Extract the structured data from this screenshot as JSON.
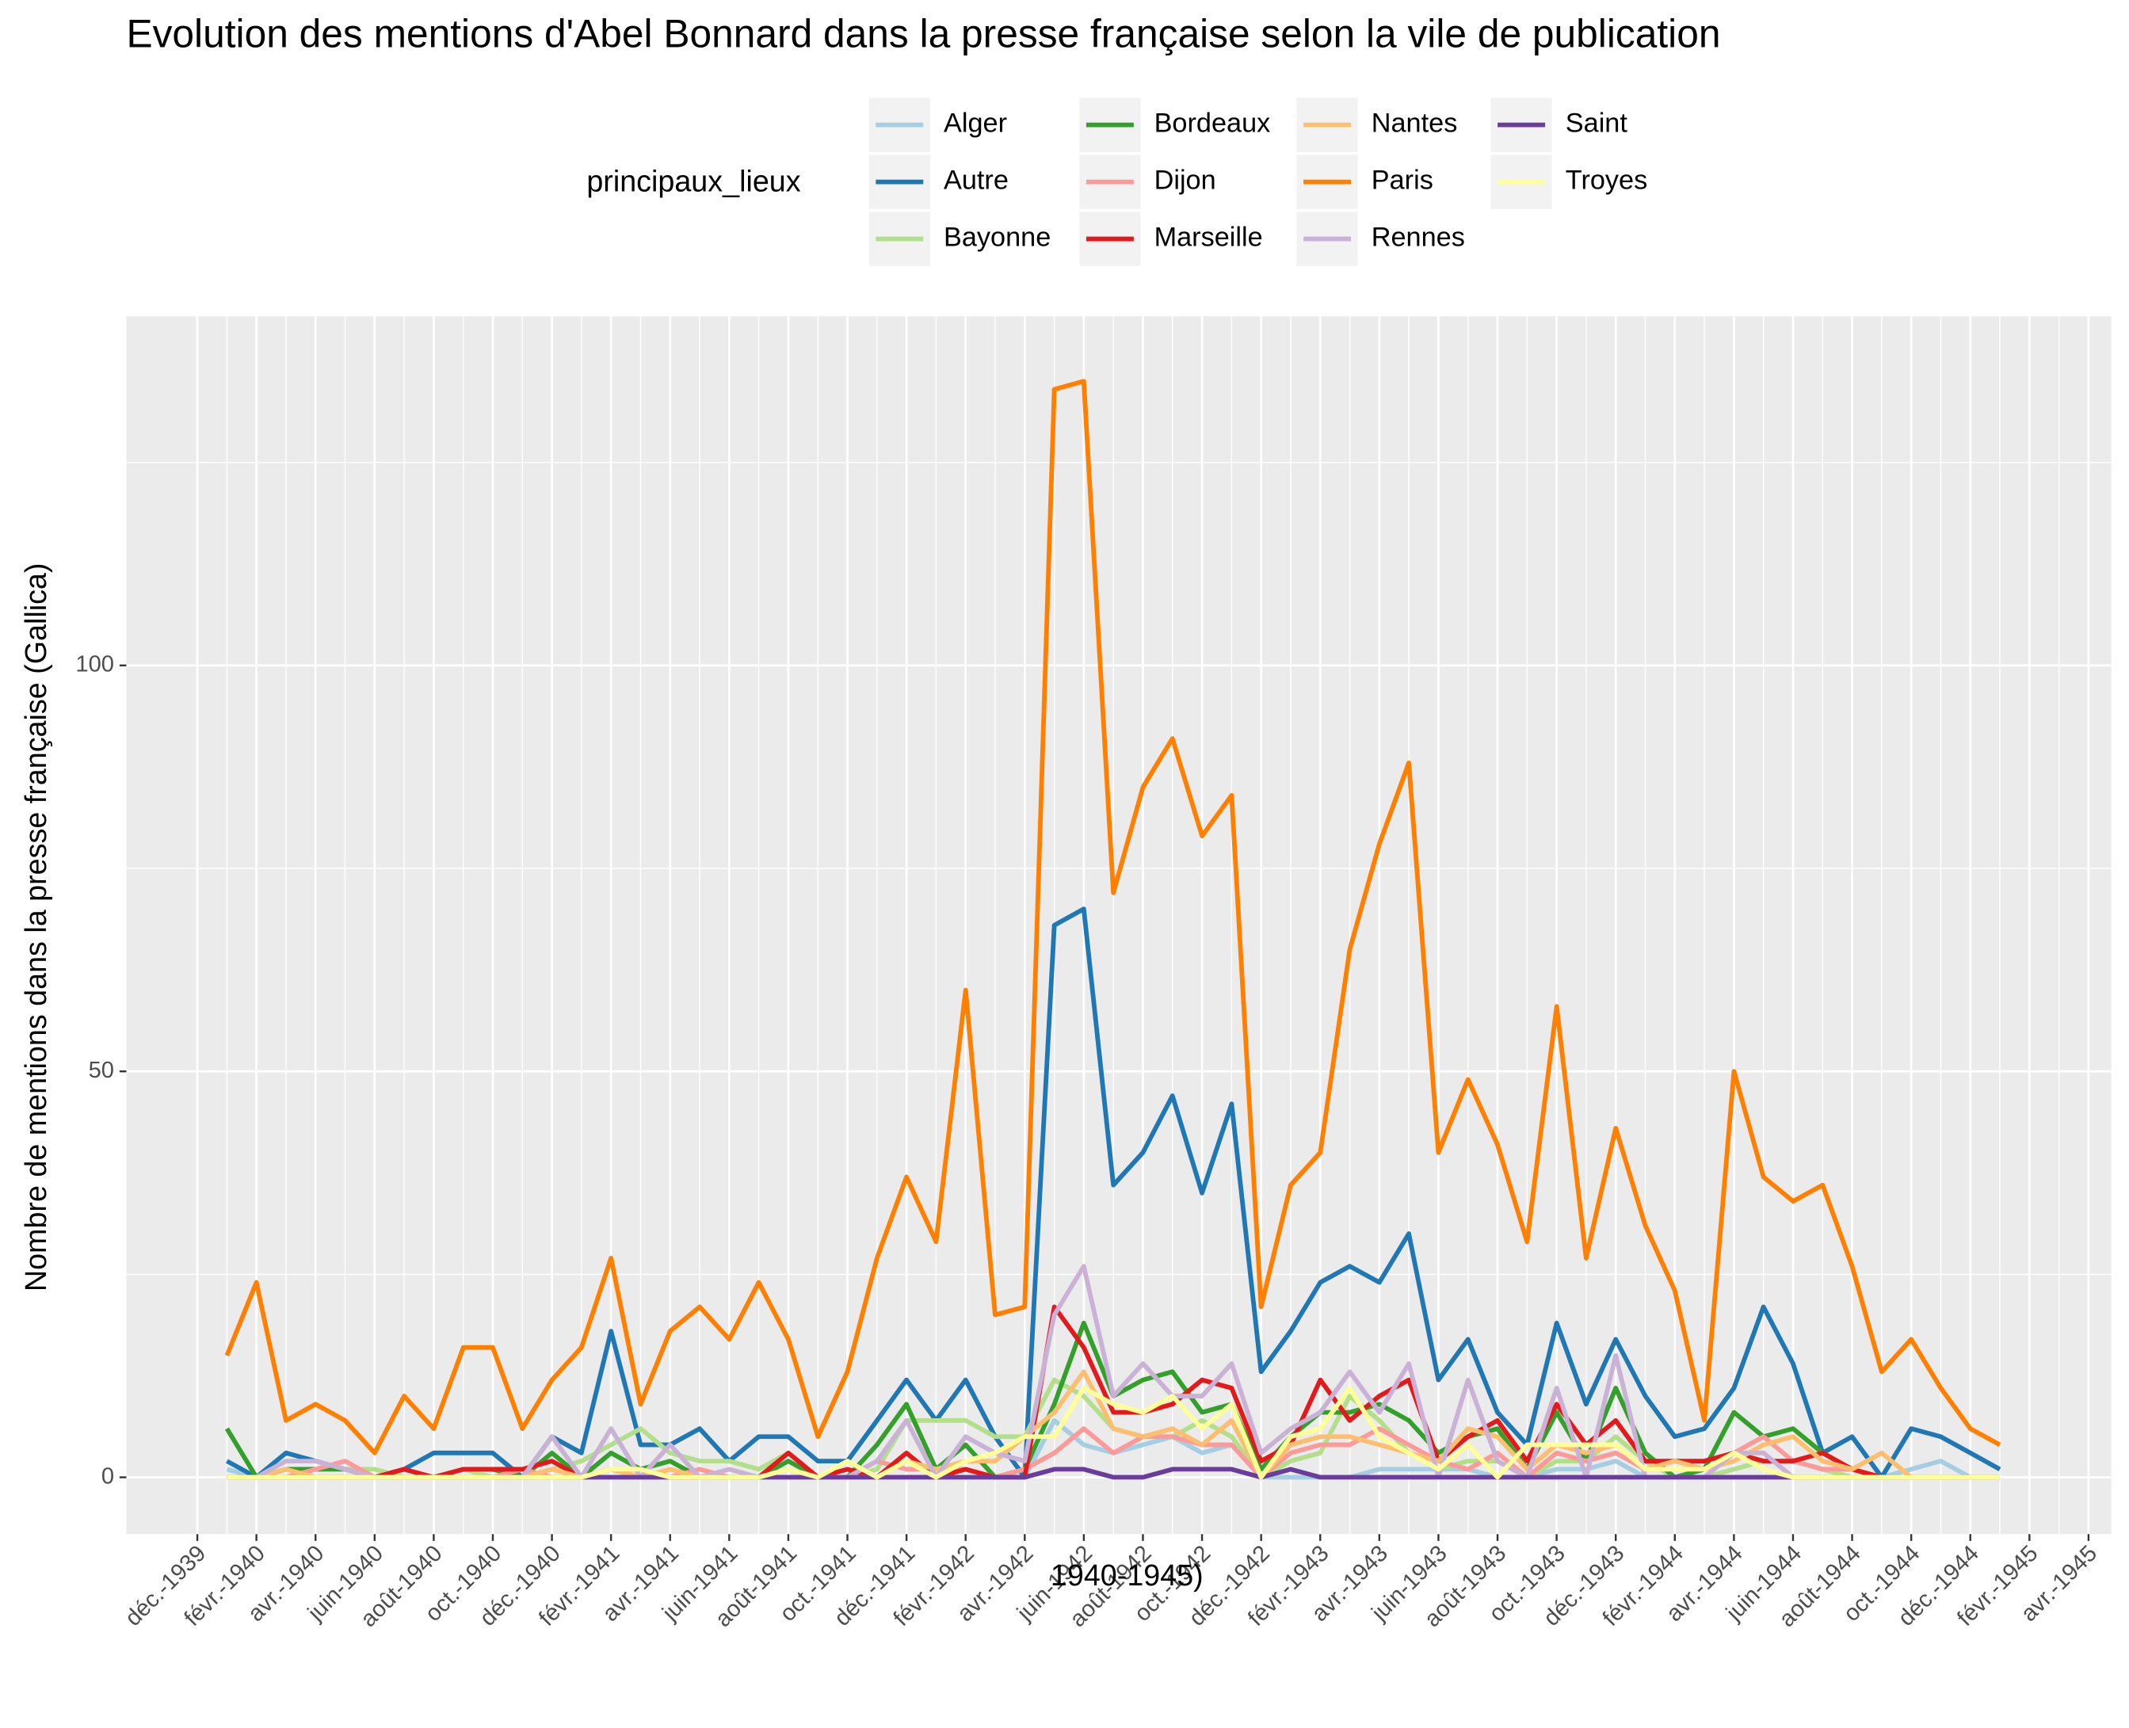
{
  "chart_data": {
    "type": "line",
    "title": "Evolution des mentions d'Abel Bonnard dans la presse française selon la vile de publication",
    "x_label": "1940-1945)",
    "y_label": "Nombre de mentions dans la presse française (Gallica)",
    "legend_title": "principaux_lieux",
    "legend_position": "top",
    "grid": true,
    "x": [
      "1940-01",
      "1940-02",
      "1940-03",
      "1940-04",
      "1940-05",
      "1940-06",
      "1940-07",
      "1940-08",
      "1940-09",
      "1940-10",
      "1940-11",
      "1940-12",
      "1941-01",
      "1941-02",
      "1941-03",
      "1941-04",
      "1941-05",
      "1941-06",
      "1941-07",
      "1941-08",
      "1941-09",
      "1941-10",
      "1941-11",
      "1941-12",
      "1942-01",
      "1942-02",
      "1942-03",
      "1942-04",
      "1942-05",
      "1942-06",
      "1942-07",
      "1942-08",
      "1942-09",
      "1942-10",
      "1942-11",
      "1942-12",
      "1943-01",
      "1943-02",
      "1943-03",
      "1943-04",
      "1943-05",
      "1943-06",
      "1943-07",
      "1943-08",
      "1943-09",
      "1943-10",
      "1943-11",
      "1943-12",
      "1944-01",
      "1944-02",
      "1944-03",
      "1944-04",
      "1944-05",
      "1944-06",
      "1944-07",
      "1944-08",
      "1944-09",
      "1944-10",
      "1944-11",
      "1944-12",
      "1945-01"
    ],
    "xlim": [
      "1939-09",
      "1945-05"
    ],
    "xticks": [
      {
        "value": "1939-12",
        "label": "déc.-1939"
      },
      {
        "value": "1940-02",
        "label": "févr.-1940"
      },
      {
        "value": "1940-04",
        "label": "avr.-1940"
      },
      {
        "value": "1940-06",
        "label": "juin-1940"
      },
      {
        "value": "1940-08",
        "label": "août-1940"
      },
      {
        "value": "1940-10",
        "label": "oct.-1940"
      },
      {
        "value": "1940-12",
        "label": "déc.-1940"
      },
      {
        "value": "1941-02",
        "label": "févr.-1941"
      },
      {
        "value": "1941-04",
        "label": "avr.-1941"
      },
      {
        "value": "1941-06",
        "label": "juin-1941"
      },
      {
        "value": "1941-08",
        "label": "août-1941"
      },
      {
        "value": "1941-10",
        "label": "oct.-1941"
      },
      {
        "value": "1941-12",
        "label": "déc.-1941"
      },
      {
        "value": "1942-02",
        "label": "févr.-1942"
      },
      {
        "value": "1942-04",
        "label": "avr.-1942"
      },
      {
        "value": "1942-06",
        "label": "juin-1942"
      },
      {
        "value": "1942-08",
        "label": "août-1942"
      },
      {
        "value": "1942-10",
        "label": "oct.-1942"
      },
      {
        "value": "1942-12",
        "label": "déc.-1942"
      },
      {
        "value": "1943-02",
        "label": "févr.-1943"
      },
      {
        "value": "1943-04",
        "label": "avr.-1943"
      },
      {
        "value": "1943-06",
        "label": "juin-1943"
      },
      {
        "value": "1943-08",
        "label": "août-1943"
      },
      {
        "value": "1943-10",
        "label": "oct.-1943"
      },
      {
        "value": "1943-12",
        "label": "déc.-1943"
      },
      {
        "value": "1944-02",
        "label": "févr.-1944"
      },
      {
        "value": "1944-04",
        "label": "avr.-1944"
      },
      {
        "value": "1944-06",
        "label": "juin-1944"
      },
      {
        "value": "1944-08",
        "label": "août-1944"
      },
      {
        "value": "1944-10",
        "label": "oct.-1944"
      },
      {
        "value": "1944-12",
        "label": "déc.-1944"
      },
      {
        "value": "1945-02",
        "label": "févr.-1945"
      },
      {
        "value": "1945-04",
        "label": "avr.-1945"
      }
    ],
    "ylim": [
      -7,
      143
    ],
    "yticks": [
      0,
      50,
      100
    ],
    "y_minor_grid": [
      25,
      75,
      125
    ],
    "series": [
      {
        "name": "Alger",
        "color": "#a6cee3",
        "values": [
          1,
          0,
          0,
          0,
          0,
          0,
          0,
          0,
          0,
          0,
          0,
          0,
          0,
          0,
          0,
          0,
          0,
          0,
          0,
          0,
          0,
          0,
          0,
          0,
          0,
          0,
          0,
          0,
          7,
          4,
          3,
          4,
          5,
          3,
          4,
          0,
          0,
          0,
          0,
          1,
          1,
          1,
          1,
          0,
          0,
          1,
          1,
          2,
          0,
          0,
          0,
          0,
          0,
          0,
          0,
          0,
          0,
          1,
          2,
          0,
          0
        ]
      },
      {
        "name": "Autre",
        "color": "#1f78b4",
        "values": [
          2,
          0,
          3,
          2,
          1,
          0,
          1,
          3,
          3,
          3,
          0,
          5,
          3,
          18,
          4,
          4,
          6,
          2,
          5,
          5,
          2,
          2,
          7,
          12,
          7,
          12,
          5,
          0,
          68,
          70,
          36,
          40,
          47,
          35,
          46,
          13,
          18,
          24,
          26,
          24,
          30,
          12,
          17,
          8,
          4,
          19,
          9,
          17,
          10,
          5,
          6,
          11,
          21,
          14,
          3,
          5,
          0,
          6,
          5,
          3,
          1
        ]
      },
      {
        "name": "Bayonne",
        "color": "#b2df8a",
        "values": [
          0,
          0,
          1,
          1,
          1,
          1,
          0,
          0,
          1,
          0,
          0,
          1,
          2,
          4,
          6,
          3,
          2,
          2,
          1,
          3,
          0,
          0,
          1,
          7,
          7,
          7,
          5,
          5,
          12,
          10,
          6,
          5,
          5,
          7,
          5,
          0,
          2,
          3,
          10,
          7,
          3,
          1,
          2,
          2,
          0,
          2,
          2,
          5,
          2,
          0,
          0,
          1,
          2,
          2,
          1,
          0,
          0,
          0,
          0,
          0,
          0
        ]
      },
      {
        "name": "Bordeaux",
        "color": "#33a02c",
        "values": [
          6,
          0,
          1,
          1,
          1,
          0,
          0,
          0,
          1,
          1,
          0,
          3,
          0,
          3,
          1,
          2,
          0,
          0,
          0,
          2,
          0,
          0,
          4,
          9,
          1,
          4,
          0,
          1,
          9,
          19,
          10,
          12,
          13,
          8,
          9,
          1,
          5,
          8,
          8,
          9,
          7,
          3,
          5,
          6,
          1,
          8,
          2,
          11,
          3,
          0,
          1,
          8,
          5,
          6,
          3,
          1,
          0,
          0,
          0,
          0,
          0
        ]
      },
      {
        "name": "Dijon",
        "color": "#fb9a99",
        "values": [
          0,
          0,
          0,
          1,
          2,
          0,
          0,
          0,
          0,
          0,
          1,
          0,
          0,
          1,
          0,
          0,
          1,
          0,
          0,
          1,
          0,
          0,
          2,
          1,
          1,
          1,
          0,
          1,
          3,
          6,
          3,
          5,
          5,
          4,
          4,
          0,
          3,
          4,
          4,
          6,
          4,
          2,
          1,
          3,
          0,
          3,
          2,
          3,
          1,
          1,
          1,
          3,
          5,
          2,
          1,
          1,
          0,
          0,
          0,
          0,
          0
        ]
      },
      {
        "name": "Marseille",
        "color": "#e31a1c",
        "values": [
          0,
          0,
          0,
          0,
          0,
          0,
          1,
          0,
          1,
          1,
          1,
          2,
          0,
          1,
          1,
          0,
          0,
          0,
          0,
          3,
          0,
          1,
          0,
          3,
          0,
          1,
          0,
          0,
          21,
          16,
          8,
          8,
          9,
          12,
          11,
          2,
          4,
          12,
          7,
          10,
          12,
          2,
          5,
          7,
          2,
          9,
          4,
          7,
          2,
          2,
          2,
          3,
          2,
          2,
          3,
          1,
          0,
          0,
          0,
          0,
          0
        ]
      },
      {
        "name": "Nantes",
        "color": "#fdbf6f",
        "values": [
          0,
          0,
          1,
          0,
          0,
          0,
          0,
          0,
          0,
          0,
          0,
          1,
          0,
          1,
          0,
          1,
          0,
          0,
          0,
          0,
          0,
          0,
          0,
          2,
          1,
          2,
          2,
          5,
          8,
          13,
          6,
          5,
          6,
          4,
          7,
          0,
          4,
          5,
          5,
          4,
          3,
          2,
          6,
          5,
          1,
          4,
          3,
          4,
          1,
          2,
          1,
          2,
          4,
          5,
          2,
          1,
          3,
          0,
          0,
          0,
          0
        ]
      },
      {
        "name": "Paris",
        "color": "#ff7f00",
        "values": [
          15,
          24,
          7,
          9,
          7,
          3,
          10,
          6,
          16,
          16,
          6,
          12,
          16,
          27,
          9,
          18,
          21,
          17,
          24,
          17,
          5,
          13,
          27,
          37,
          29,
          60,
          20,
          21,
          134,
          135,
          72,
          85,
          91,
          79,
          84,
          21,
          36,
          40,
          65,
          78,
          88,
          40,
          49,
          41,
          29,
          58,
          27,
          43,
          31,
          23,
          7,
          50,
          37,
          34,
          36,
          26,
          13,
          17,
          11,
          6,
          4
        ]
      },
      {
        "name": "Rennes",
        "color": "#cab2d6",
        "values": [
          0,
          0,
          2,
          2,
          1,
          0,
          0,
          0,
          0,
          0,
          0,
          5,
          0,
          6,
          0,
          4,
          0,
          1,
          0,
          1,
          0,
          0,
          2,
          7,
          0,
          5,
          3,
          2,
          20,
          26,
          10,
          14,
          10,
          10,
          14,
          3,
          6,
          8,
          13,
          8,
          14,
          0,
          12,
          2,
          0,
          11,
          0,
          15,
          0,
          0,
          0,
          3,
          3,
          0,
          0,
          0,
          0,
          0,
          0,
          0,
          0
        ]
      },
      {
        "name": "Saint",
        "color": "#6a3d9a",
        "values": [
          0,
          0,
          0,
          0,
          0,
          0,
          0,
          0,
          0,
          0,
          0,
          0,
          0,
          0,
          0,
          0,
          0,
          0,
          0,
          0,
          0,
          0,
          0,
          0,
          0,
          0,
          0,
          0,
          1,
          1,
          0,
          0,
          1,
          1,
          1,
          0,
          1,
          0,
          0,
          0,
          0,
          0,
          0,
          0,
          0,
          0,
          0,
          0,
          0,
          0,
          0,
          0,
          0,
          0,
          0,
          0,
          0,
          0,
          0,
          0,
          0
        ]
      },
      {
        "name": "Troyes",
        "color": "#ffff99",
        "values": [
          0,
          0,
          0,
          0,
          0,
          0,
          0,
          0,
          0,
          0,
          0,
          0,
          0,
          1,
          1,
          0,
          0,
          0,
          0,
          1,
          0,
          2,
          0,
          2,
          0,
          2,
          3,
          5,
          5,
          11,
          9,
          8,
          10,
          6,
          9,
          0,
          5,
          6,
          11,
          5,
          3,
          1,
          4,
          0,
          4,
          4,
          4,
          4,
          1,
          1,
          1,
          3,
          1,
          0,
          0,
          0,
          0,
          0,
          0,
          0,
          0
        ]
      }
    ]
  }
}
